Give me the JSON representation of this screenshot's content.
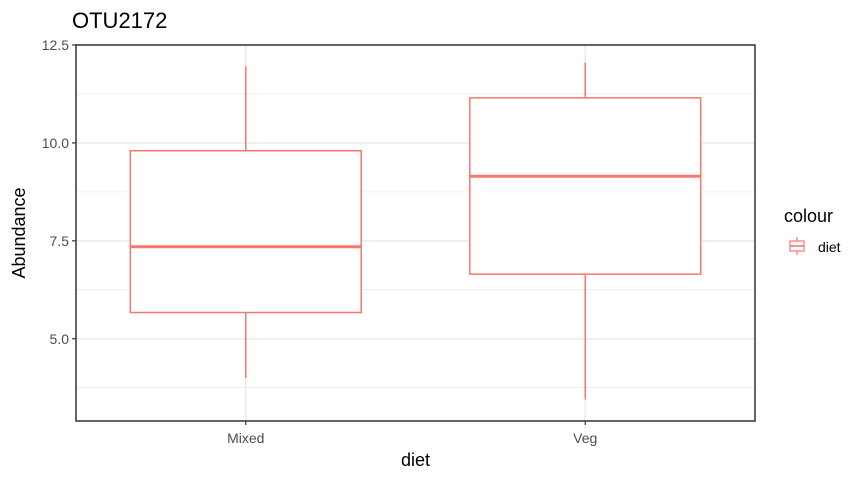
{
  "chart_data": {
    "type": "boxplot",
    "title": "OTU2172",
    "xlabel": "diet",
    "ylabel": "Abundance",
    "categories": [
      "Mixed",
      "Veg"
    ],
    "ylim": [
      2.9,
      12.5
    ],
    "yticks": [
      5.0,
      7.5,
      10.0,
      12.5
    ],
    "ytick_labels": [
      "5.0",
      "7.5",
      "10.0",
      "12.5"
    ],
    "grid": true,
    "boxes": [
      {
        "category": "Mixed",
        "min": 4.0,
        "q1": 5.67,
        "median": 7.35,
        "q3": 9.8,
        "max": 11.95
      },
      {
        "category": "Veg",
        "min": 3.45,
        "q1": 6.65,
        "median": 9.15,
        "q3": 11.15,
        "max": 12.05
      }
    ],
    "series_color": "#f8766d",
    "legend": {
      "title": "colour",
      "placement": "right",
      "items": [
        {
          "label": "diet",
          "color": "#f8766d"
        }
      ]
    }
  }
}
